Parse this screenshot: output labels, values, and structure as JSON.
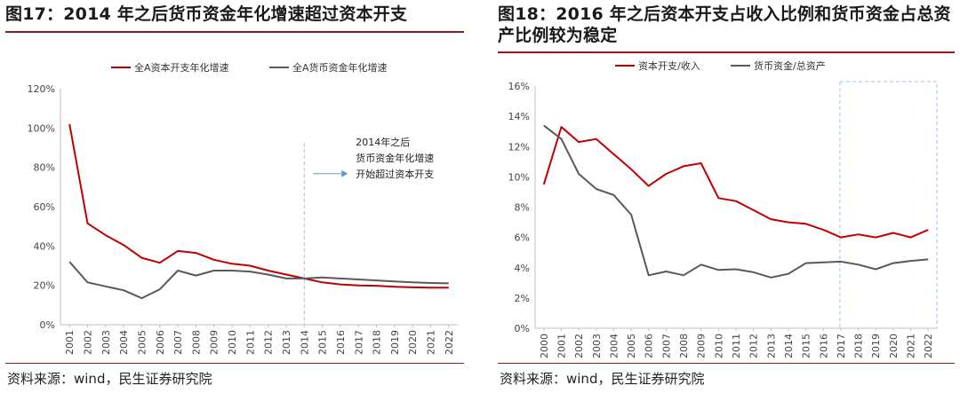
{
  "figures": [
    {
      "title": "图17：2014 年之后货币资金年化增速超过资本开支",
      "source": "资料来源：wind，民生证券研究院"
    },
    {
      "title": "图18：2016 年之后资本开支占收入比例和货币资金占总资产比例较为稳定",
      "source": "资料来源：wind，民生证券研究院"
    }
  ],
  "chart_data": [
    {
      "type": "line",
      "title": "",
      "xlabel": "",
      "ylabel": "",
      "x": [
        "2001",
        "2002",
        "2003",
        "2004",
        "2005",
        "2006",
        "2007",
        "2008",
        "2009",
        "2010",
        "2011",
        "2012",
        "2013",
        "2014",
        "2015",
        "2016",
        "2017",
        "2018",
        "2019",
        "2020",
        "2021",
        "2022"
      ],
      "ylim": [
        0,
        120
      ],
      "yticks": [
        "0%",
        "20%",
        "40%",
        "60%",
        "80%",
        "100%",
        "120%"
      ],
      "grid": false,
      "legend_position": "top-center",
      "series": [
        {
          "name": "全A资本开支年化增速",
          "color": "#c00000",
          "values": [
            102,
            51.5,
            45.5,
            40.5,
            34,
            31.5,
            37.5,
            36.5,
            33,
            31,
            30,
            27.5,
            25.5,
            23.5,
            21.5,
            20.5,
            20,
            19.8,
            19.3,
            19,
            18.8,
            18.8
          ]
        },
        {
          "name": "全A货币资金年化增速",
          "color": "#595959",
          "values": [
            32,
            21.5,
            19.5,
            17.5,
            13.5,
            18,
            27.5,
            25,
            27.5,
            27.5,
            27,
            25.5,
            23.5,
            23.5,
            24,
            23.5,
            23,
            22.5,
            22,
            21.5,
            21.2,
            21
          ]
        }
      ],
      "annotation": {
        "lines": [
          "2014年之后",
          "货币资金年化增速",
          "开始超过资本开支"
        ],
        "arrow_from_year": "2014"
      }
    },
    {
      "type": "line",
      "title": "",
      "xlabel": "",
      "ylabel": "",
      "x": [
        "2000",
        "2001",
        "2002",
        "2003",
        "2004",
        "2005",
        "2006",
        "2007",
        "2008",
        "2009",
        "2010",
        "2011",
        "2012",
        "2013",
        "2014",
        "2015",
        "2016",
        "2017",
        "2018",
        "2019",
        "2020",
        "2021",
        "2022"
      ],
      "ylim": [
        0,
        16
      ],
      "yticks": [
        "0%",
        "2%",
        "4%",
        "6%",
        "8%",
        "10%",
        "12%",
        "14%",
        "16%"
      ],
      "grid": false,
      "legend_position": "top-center",
      "series": [
        {
          "name": "资本开支/收入",
          "color": "#c00000",
          "values": [
            9.5,
            13.3,
            12.3,
            12.5,
            11.5,
            10.5,
            9.4,
            10.2,
            10.7,
            10.9,
            8.6,
            8.4,
            7.8,
            7.2,
            7.0,
            6.9,
            6.5,
            6.0,
            6.2,
            6.0,
            6.3,
            6.0,
            6.5
          ]
        },
        {
          "name": "货币资金/总资产",
          "color": "#595959",
          "values": [
            13.4,
            12.5,
            10.2,
            9.2,
            8.8,
            7.5,
            3.5,
            3.75,
            3.5,
            4.2,
            3.85,
            3.9,
            3.7,
            3.35,
            3.6,
            4.3,
            4.35,
            4.4,
            4.2,
            3.9,
            4.3,
            4.45,
            4.55
          ]
        }
      ],
      "highlight_range": [
        "2017",
        "2022"
      ]
    }
  ]
}
